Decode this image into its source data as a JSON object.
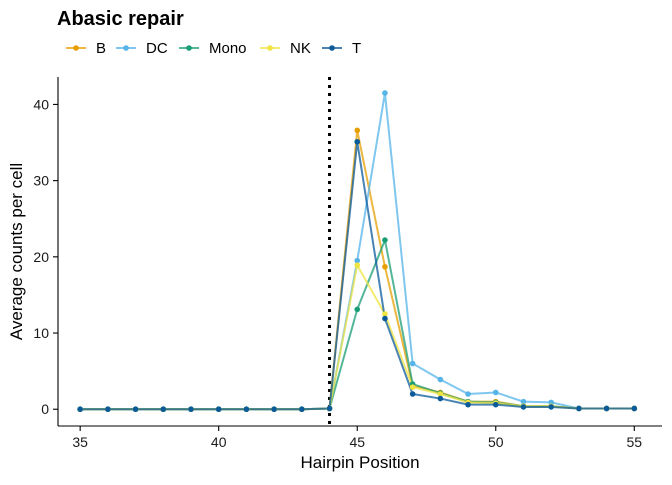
{
  "chart_data": {
    "type": "line",
    "title": "Abasic repair",
    "xlabel": "Hairpin Position",
    "ylabel": "Average counts per cell",
    "xlim": [
      34.2,
      56
    ],
    "ylim": [
      -2.2,
      43.6
    ],
    "xticks": [
      35,
      40,
      45,
      50,
      55
    ],
    "yticks": [
      0,
      10,
      20,
      30,
      40
    ],
    "grid": false,
    "legend_position": "top-left",
    "vline": {
      "x": 44,
      "style": "dotted"
    },
    "x": [
      35,
      36,
      37,
      38,
      39,
      40,
      41,
      42,
      43,
      44,
      45,
      46,
      47,
      48,
      49,
      50,
      51,
      52,
      53,
      54,
      55
    ],
    "series": [
      {
        "name": "B",
        "color": "#E69F00",
        "values": [
          0,
          0,
          0,
          0,
          0,
          0,
          0,
          0,
          0,
          0.1,
          36.6,
          18.7,
          3.1,
          2.2,
          1.0,
          1.0,
          0.4,
          0.4,
          0.1,
          0.1,
          0.1
        ]
      },
      {
        "name": "DC",
        "color": "#56B4E9",
        "values": [
          0,
          0,
          0,
          0,
          0,
          0,
          0,
          0,
          0,
          0.1,
          19.5,
          41.5,
          6.0,
          3.9,
          2.0,
          2.2,
          1.0,
          0.9,
          0.1,
          0.1,
          0.1
        ]
      },
      {
        "name": "Mono",
        "color": "#1B9E77",
        "values": [
          0,
          0,
          0,
          0,
          0,
          0,
          0,
          0,
          0,
          0.1,
          13.1,
          22.2,
          3.3,
          2.1,
          1.0,
          0.9,
          0.4,
          0.4,
          0.1,
          0.1,
          0.1
        ]
      },
      {
        "name": "NK",
        "color": "#F0E442",
        "values": [
          0,
          0,
          0,
          0,
          0,
          0,
          0,
          0,
          0,
          0.1,
          18.9,
          12.5,
          2.9,
          2.0,
          0.9,
          0.8,
          0.4,
          0.4,
          0.1,
          0.1,
          0.1
        ]
      },
      {
        "name": "T",
        "color": "#0B5A99",
        "values": [
          0,
          0,
          0,
          0,
          0,
          0,
          0,
          0,
          0,
          0.1,
          35.1,
          11.9,
          2.0,
          1.4,
          0.6,
          0.6,
          0.3,
          0.3,
          0.1,
          0.1,
          0.1
        ]
      }
    ]
  }
}
